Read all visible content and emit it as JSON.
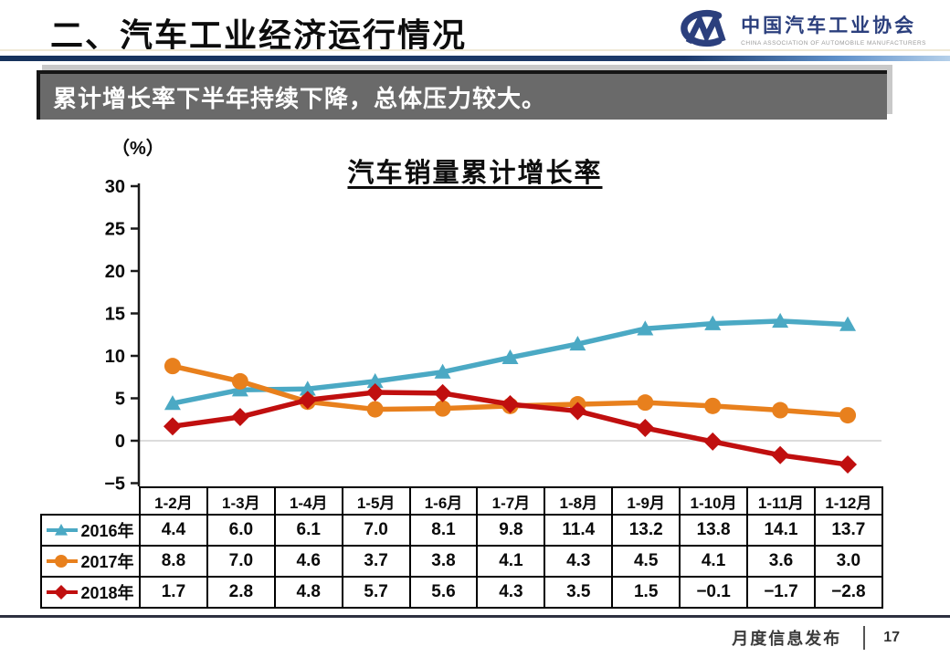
{
  "header": {
    "title": "二、汽车工业经济运行情况",
    "logo": {
      "mark": "CM",
      "name": "中国汽车工业协会",
      "subtitle": "CHINA ASSOCIATION OF AUTOMOBILE MANUFACTURERS",
      "color": "#2B3F7D"
    }
  },
  "banner": {
    "text": "累计增长率下半年持续下降，总体压力较大。",
    "background": "#6A6A6A"
  },
  "chart_data": {
    "type": "line",
    "title": "汽车销量累计增长率",
    "unit_label": "（%）",
    "categories": [
      "1-2月",
      "1-3月",
      "1-4月",
      "1-5月",
      "1-6月",
      "1-7月",
      "1-8月",
      "1-9月",
      "1-10月",
      "1-11月",
      "1-12月"
    ],
    "series": [
      {
        "name": "2016年",
        "color": "#4BA9C4",
        "marker": "triangle",
        "values": [
          4.4,
          6.0,
          6.1,
          7.0,
          8.1,
          9.8,
          11.4,
          13.2,
          13.8,
          14.1,
          13.7
        ]
      },
      {
        "name": "2017年",
        "color": "#E8801D",
        "marker": "circle",
        "values": [
          8.8,
          7.0,
          4.6,
          3.7,
          3.8,
          4.1,
          4.3,
          4.5,
          4.1,
          3.6,
          3.0
        ]
      },
      {
        "name": "2018年",
        "color": "#C00F0F",
        "marker": "diamond",
        "values": [
          1.7,
          2.8,
          4.8,
          5.7,
          5.6,
          4.3,
          3.5,
          1.5,
          -0.1,
          -1.7,
          -2.8
        ]
      }
    ],
    "ylim": [
      -5,
      30
    ],
    "yticks": [
      30,
      25,
      20,
      15,
      10,
      5,
      0,
      -5
    ],
    "grid": "zero-line-only",
    "legend_position": "table-left",
    "zero_line_color": "#d0d0d0"
  },
  "footer": {
    "label": "月度信息发布",
    "page": "17"
  }
}
